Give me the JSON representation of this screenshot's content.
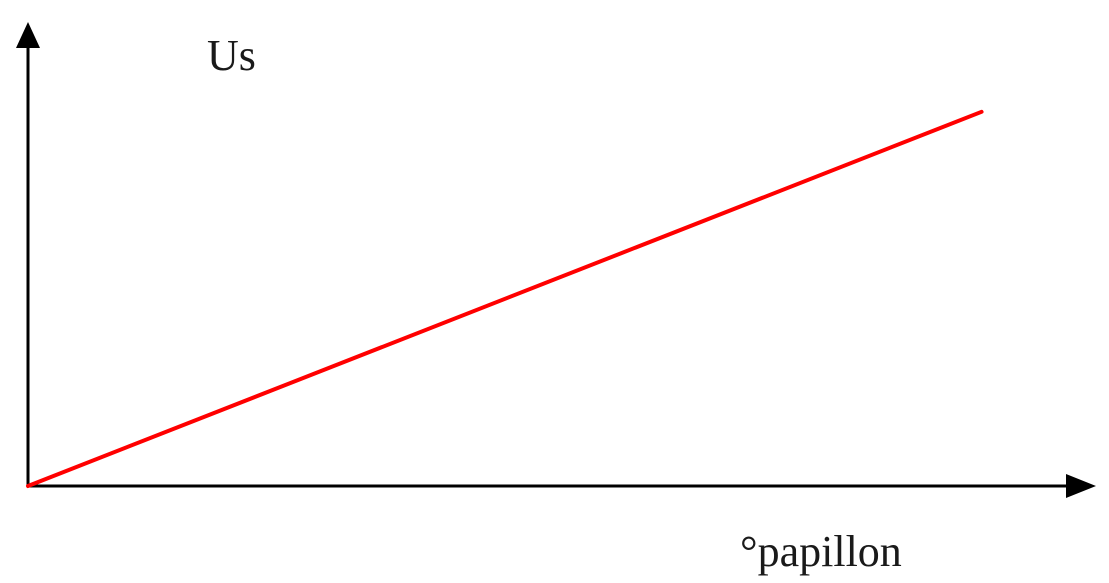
{
  "chart_data": {
    "type": "line",
    "title": "",
    "xlabel": "°papillon",
    "ylabel": "Us",
    "grid": false,
    "legend": "none",
    "axis_color": "#000000",
    "series": [
      {
        "color": "#ff0000",
        "x": [
          0,
          1
        ],
        "y": [
          0,
          1
        ]
      }
    ],
    "xlim": [
      0,
      1.12
    ],
    "ylim": [
      0,
      1.24
    ]
  }
}
